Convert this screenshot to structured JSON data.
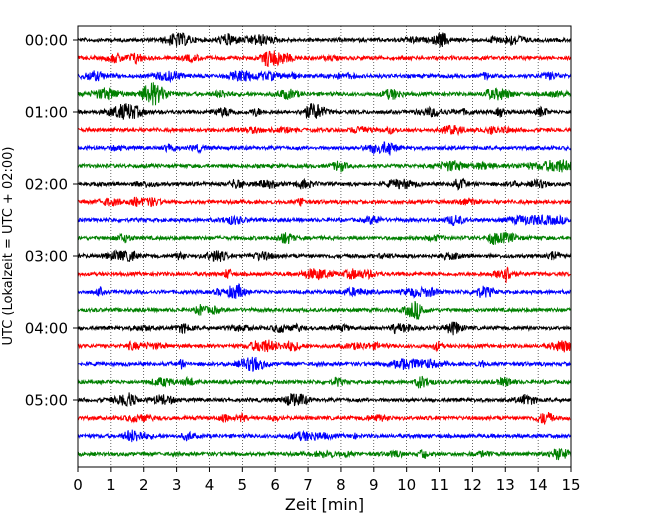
{
  "chart_data": {
    "type": "line",
    "title": "",
    "xlabel": "Zeit  [min]",
    "ylabel": "UTC (Lokalzeit = UTC + 02:00)",
    "xlim": [
      0,
      15
    ],
    "x_ticks": [
      "0",
      "1",
      "2",
      "3",
      "4",
      "5",
      "6",
      "7",
      "8",
      "9",
      "10",
      "11",
      "12",
      "13",
      "14",
      "15"
    ],
    "y_ticks": [
      "00:00",
      "01:00",
      "02:00",
      "03:00",
      "04:00",
      "05:00"
    ],
    "x_grid": "vertical dotted lines at each minute",
    "rows_per_hour": 4,
    "minutes_per_row": 15,
    "series": [
      {
        "start": "00:00",
        "color": "#000000"
      },
      {
        "start": "00:15",
        "color": "#ff0000"
      },
      {
        "start": "00:30",
        "color": "#0000ff"
      },
      {
        "start": "00:45",
        "color": "#008000"
      },
      {
        "start": "01:00",
        "color": "#000000"
      },
      {
        "start": "01:15",
        "color": "#ff0000"
      },
      {
        "start": "01:30",
        "color": "#0000ff"
      },
      {
        "start": "01:45",
        "color": "#008000"
      },
      {
        "start": "02:00",
        "color": "#000000"
      },
      {
        "start": "02:15",
        "color": "#ff0000"
      },
      {
        "start": "02:30",
        "color": "#0000ff"
      },
      {
        "start": "02:45",
        "color": "#008000"
      },
      {
        "start": "03:00",
        "color": "#000000"
      },
      {
        "start": "03:15",
        "color": "#ff0000"
      },
      {
        "start": "03:30",
        "color": "#0000ff"
      },
      {
        "start": "03:45",
        "color": "#008000"
      },
      {
        "start": "04:00",
        "color": "#000000"
      },
      {
        "start": "04:15",
        "color": "#ff0000"
      },
      {
        "start": "04:30",
        "color": "#0000ff"
      },
      {
        "start": "04:45",
        "color": "#008000"
      },
      {
        "start": "05:00",
        "color": "#000000"
      },
      {
        "start": "05:15",
        "color": "#ff0000"
      },
      {
        "start": "05:30",
        "color": "#0000ff"
      },
      {
        "start": "05:45",
        "color": "#008000"
      }
    ]
  }
}
